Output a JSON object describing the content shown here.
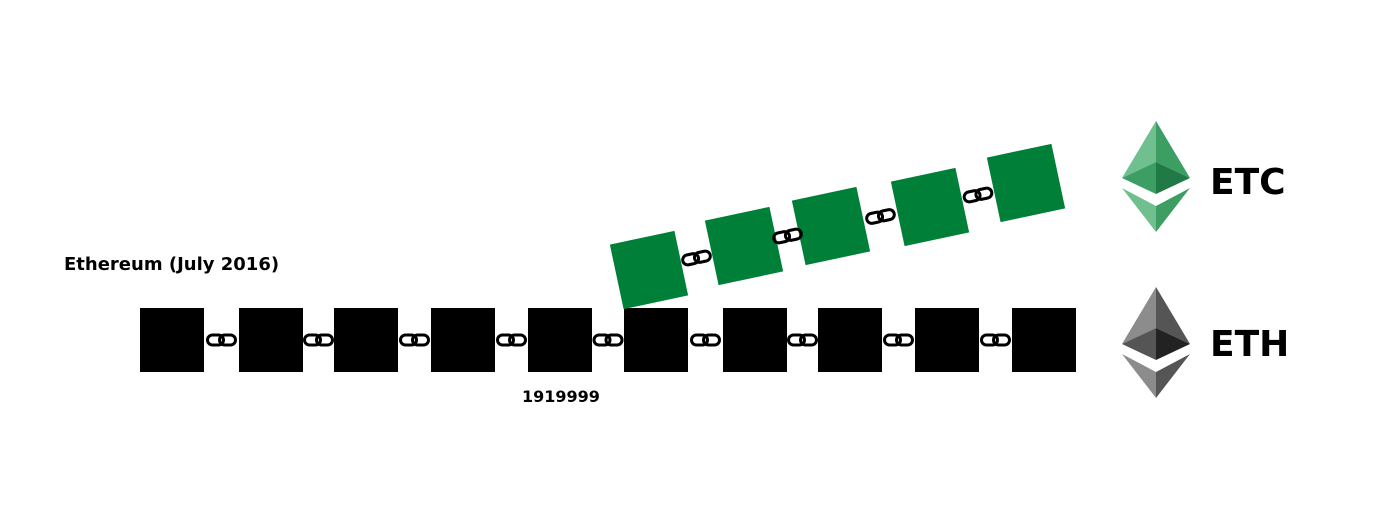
{
  "diagram": {
    "title": "Ethereum (July 2016)",
    "fork_block_label": "1919999",
    "chains": [
      {
        "name": "ETC",
        "color": "#007f39",
        "block_count": 5
      },
      {
        "name": "ETH",
        "color": "#000000",
        "block_count": 10
      }
    ],
    "fork_after_block": 5
  },
  "icons": {
    "link": "chain-link-icon",
    "logo": "ethereum-diamond-icon"
  },
  "colors": {
    "etc_green": "#007f39",
    "etc_logo_light": "#6fbf8f",
    "etc_logo_mid": "#3c9e63",
    "etc_logo_dark": "#1f7a45",
    "eth_block": "#000000",
    "eth_logo_light": "#8c8c8c",
    "eth_logo_mid": "#555555",
    "eth_logo_dark": "#222222"
  }
}
